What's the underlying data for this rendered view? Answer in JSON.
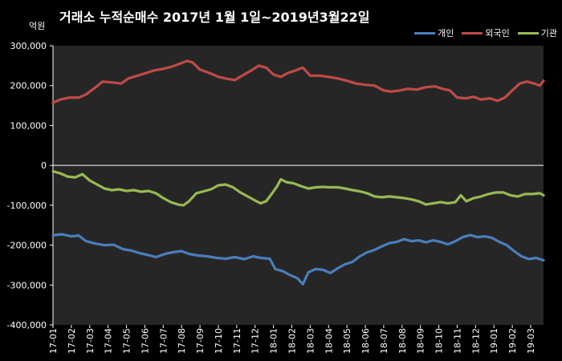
{
  "colors": {
    "individual": "#4a7ebb",
    "foreign": "#be4b48",
    "institution": "#98b954",
    "plot_bg": "#262626",
    "grid": "#ffffff"
  },
  "chart_data": {
    "type": "line",
    "title": "거래소  누적순매수 2017년 1월 1일~2019년3월22일",
    "ylabel": "억원",
    "xlabel": "",
    "ylim": [
      -400000,
      300000
    ],
    "yticks": [
      300000,
      200000,
      100000,
      0,
      -100000,
      -200000,
      -300000,
      -400000
    ],
    "ytick_labels": [
      "300,000",
      "200,000",
      "100,000",
      "0",
      "-100,000",
      "-200,000",
      "-300,000",
      "-400,000"
    ],
    "x": [
      0,
      1,
      2,
      3,
      4,
      5,
      6,
      7,
      8,
      9,
      10,
      11,
      12,
      13,
      14,
      15,
      16,
      17,
      18,
      19,
      20,
      21,
      22,
      23,
      24,
      25,
      26
    ],
    "categories": [
      "17-01",
      "17-02",
      "17-03",
      "17-04",
      "17-05",
      "17-06",
      "17-07",
      "17-08",
      "17-09",
      "17-10",
      "17-11",
      "17-12",
      "18-01",
      "18-02",
      "18-03",
      "18-04",
      "18-05",
      "18-06",
      "18-07",
      "18-08",
      "18-09",
      "18-10",
      "18-11",
      "18-12",
      "19-01",
      "19-02",
      "19-03"
    ],
    "x_end": 26.7,
    "legend_position": "top-right",
    "grid": false,
    "series": [
      {
        "name": "개인",
        "key": "individual",
        "points": [
          [
            0,
            -175000
          ],
          [
            0.5,
            -173000
          ],
          [
            1,
            -178000
          ],
          [
            1.4,
            -176000
          ],
          [
            1.8,
            -190000
          ],
          [
            2.3,
            -196000
          ],
          [
            2.8,
            -200000
          ],
          [
            3.3,
            -199000
          ],
          [
            3.8,
            -210000
          ],
          [
            4.3,
            -214000
          ],
          [
            4.7,
            -220000
          ],
          [
            5.2,
            -225000
          ],
          [
            5.6,
            -230000
          ],
          [
            6.1,
            -222000
          ],
          [
            6.5,
            -218000
          ],
          [
            7,
            -215000
          ],
          [
            7.4,
            -222000
          ],
          [
            7.9,
            -226000
          ],
          [
            8.4,
            -228000
          ],
          [
            8.9,
            -232000
          ],
          [
            9.4,
            -234000
          ],
          [
            9.9,
            -230000
          ],
          [
            10.4,
            -235000
          ],
          [
            10.9,
            -228000
          ],
          [
            11.3,
            -232000
          ],
          [
            11.8,
            -234000
          ],
          [
            12.1,
            -260000
          ],
          [
            12.5,
            -265000
          ],
          [
            12.9,
            -275000
          ],
          [
            13.3,
            -283000
          ],
          [
            13.6,
            -298000
          ],
          [
            13.9,
            -268000
          ],
          [
            14.3,
            -260000
          ],
          [
            14.7,
            -262000
          ],
          [
            15.1,
            -270000
          ],
          [
            15.5,
            -258000
          ],
          [
            15.9,
            -248000
          ],
          [
            16.3,
            -242000
          ],
          [
            16.7,
            -228000
          ],
          [
            17.1,
            -218000
          ],
          [
            17.5,
            -212000
          ],
          [
            17.9,
            -203000
          ],
          [
            18.3,
            -195000
          ],
          [
            18.7,
            -192000
          ],
          [
            19.1,
            -185000
          ],
          [
            19.5,
            -190000
          ],
          [
            19.9,
            -188000
          ],
          [
            20.3,
            -193000
          ],
          [
            20.7,
            -188000
          ],
          [
            21.1,
            -192000
          ],
          [
            21.5,
            -198000
          ],
          [
            21.9,
            -190000
          ],
          [
            22.3,
            -180000
          ],
          [
            22.7,
            -175000
          ],
          [
            23.1,
            -180000
          ],
          [
            23.5,
            -178000
          ],
          [
            23.9,
            -182000
          ],
          [
            24.3,
            -192000
          ],
          [
            24.7,
            -200000
          ],
          [
            25.1,
            -215000
          ],
          [
            25.5,
            -228000
          ],
          [
            25.9,
            -235000
          ],
          [
            26.3,
            -232000
          ],
          [
            26.7,
            -238000
          ]
        ]
      },
      {
        "name": "외국인",
        "key": "foreign",
        "points": [
          [
            0,
            157000
          ],
          [
            0.4,
            165000
          ],
          [
            0.9,
            170000
          ],
          [
            1.4,
            170000
          ],
          [
            1.8,
            178000
          ],
          [
            2.3,
            195000
          ],
          [
            2.7,
            210000
          ],
          [
            3.2,
            208000
          ],
          [
            3.7,
            205000
          ],
          [
            4.1,
            218000
          ],
          [
            4.6,
            225000
          ],
          [
            5.1,
            232000
          ],
          [
            5.5,
            238000
          ],
          [
            6,
            242000
          ],
          [
            6.5,
            248000
          ],
          [
            6.9,
            255000
          ],
          [
            7.3,
            262000
          ],
          [
            7.6,
            258000
          ],
          [
            8,
            240000
          ],
          [
            8.5,
            232000
          ],
          [
            9,
            222000
          ],
          [
            9.5,
            217000
          ],
          [
            9.9,
            214000
          ],
          [
            10.3,
            225000
          ],
          [
            10.8,
            238000
          ],
          [
            11.2,
            250000
          ],
          [
            11.6,
            245000
          ],
          [
            12,
            228000
          ],
          [
            12.4,
            222000
          ],
          [
            12.8,
            232000
          ],
          [
            13.2,
            238000
          ],
          [
            13.6,
            245000
          ],
          [
            14,
            225000
          ],
          [
            14.5,
            225000
          ],
          [
            15,
            222000
          ],
          [
            15.5,
            218000
          ],
          [
            16,
            212000
          ],
          [
            16.5,
            205000
          ],
          [
            17,
            202000
          ],
          [
            17.5,
            200000
          ],
          [
            18,
            188000
          ],
          [
            18.4,
            185000
          ],
          [
            18.9,
            188000
          ],
          [
            19.3,
            192000
          ],
          [
            19.8,
            190000
          ],
          [
            20.3,
            196000
          ],
          [
            20.8,
            198000
          ],
          [
            21.2,
            192000
          ],
          [
            21.6,
            188000
          ],
          [
            22,
            170000
          ],
          [
            22.5,
            168000
          ],
          [
            22.9,
            172000
          ],
          [
            23.3,
            165000
          ],
          [
            23.8,
            168000
          ],
          [
            24.2,
            162000
          ],
          [
            24.6,
            170000
          ],
          [
            25,
            188000
          ],
          [
            25.4,
            205000
          ],
          [
            25.8,
            210000
          ],
          [
            26.2,
            205000
          ],
          [
            26.5,
            200000
          ],
          [
            26.7,
            212000
          ]
        ]
      },
      {
        "name": "기관",
        "key": "institution",
        "points": [
          [
            0,
            -15000
          ],
          [
            0.4,
            -20000
          ],
          [
            0.8,
            -28000
          ],
          [
            1.2,
            -30000
          ],
          [
            1.6,
            -22000
          ],
          [
            2,
            -38000
          ],
          [
            2.4,
            -48000
          ],
          [
            2.8,
            -58000
          ],
          [
            3.2,
            -62000
          ],
          [
            3.6,
            -60000
          ],
          [
            4,
            -64000
          ],
          [
            4.4,
            -62000
          ],
          [
            4.8,
            -66000
          ],
          [
            5.2,
            -64000
          ],
          [
            5.6,
            -70000
          ],
          [
            6,
            -82000
          ],
          [
            6.4,
            -92000
          ],
          [
            6.8,
            -98000
          ],
          [
            7.1,
            -100000
          ],
          [
            7.4,
            -90000
          ],
          [
            7.8,
            -70000
          ],
          [
            8.2,
            -65000
          ],
          [
            8.6,
            -60000
          ],
          [
            9,
            -50000
          ],
          [
            9.4,
            -48000
          ],
          [
            9.8,
            -55000
          ],
          [
            10.2,
            -68000
          ],
          [
            10.6,
            -78000
          ],
          [
            11,
            -88000
          ],
          [
            11.3,
            -95000
          ],
          [
            11.6,
            -90000
          ],
          [
            11.9,
            -72000
          ],
          [
            12.2,
            -52000
          ],
          [
            12.4,
            -35000
          ],
          [
            12.7,
            -42000
          ],
          [
            13.1,
            -45000
          ],
          [
            13.5,
            -52000
          ],
          [
            13.9,
            -58000
          ],
          [
            14.3,
            -55000
          ],
          [
            14.7,
            -54000
          ],
          [
            15.1,
            -55000
          ],
          [
            15.5,
            -55000
          ],
          [
            15.9,
            -58000
          ],
          [
            16.3,
            -62000
          ],
          [
            16.7,
            -65000
          ],
          [
            17.1,
            -70000
          ],
          [
            17.5,
            -78000
          ],
          [
            17.9,
            -80000
          ],
          [
            18.3,
            -78000
          ],
          [
            18.7,
            -80000
          ],
          [
            19.1,
            -82000
          ],
          [
            19.5,
            -85000
          ],
          [
            19.9,
            -90000
          ],
          [
            20.3,
            -98000
          ],
          [
            20.7,
            -95000
          ],
          [
            21.1,
            -92000
          ],
          [
            21.5,
            -95000
          ],
          [
            21.9,
            -92000
          ],
          [
            22.2,
            -75000
          ],
          [
            22.5,
            -90000
          ],
          [
            22.9,
            -82000
          ],
          [
            23.3,
            -78000
          ],
          [
            23.7,
            -72000
          ],
          [
            24.1,
            -68000
          ],
          [
            24.5,
            -68000
          ],
          [
            24.9,
            -75000
          ],
          [
            25.3,
            -78000
          ],
          [
            25.7,
            -72000
          ],
          [
            26.1,
            -72000
          ],
          [
            26.5,
            -70000
          ],
          [
            26.7,
            -75000
          ]
        ]
      }
    ]
  }
}
